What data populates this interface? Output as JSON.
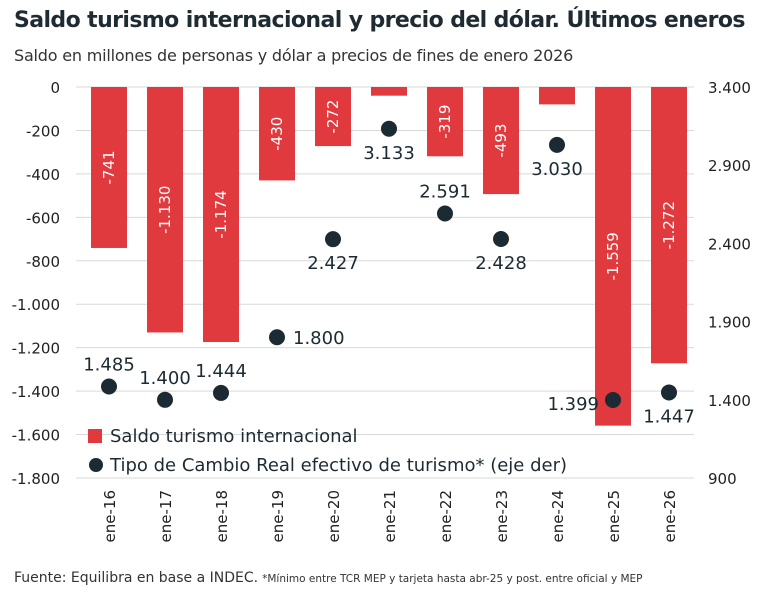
{
  "title": "Saldo turismo internacional y precio del dólar. Últimos eneros",
  "subtitle": "Saldo en millones de personas y dólar a precios de fines de enero 2026",
  "footer": {
    "source": "Fuente: Equilibra en base a INDEC.",
    "note": "*Mínimo entre TCR MEP y tarjeta hasta abr-25 y post. entre oficial y MEP"
  },
  "chart_data": {
    "type": "bar",
    "title": "Saldo turismo internacional y precio del dólar. Últimos eneros",
    "categories": [
      "ene-16",
      "ene-17",
      "ene-18",
      "ene-19",
      "ene-20",
      "ene-21",
      "ene-22",
      "ene-23",
      "ene-24",
      "ene-25",
      "ene-26"
    ],
    "series": [
      {
        "name": "Saldo turismo internacional",
        "axis": "left",
        "type": "bar",
        "color": "#e03a3e",
        "values": [
          -741,
          -1130,
          -1174,
          -430,
          -272,
          -40,
          -319,
          -493,
          -80,
          -1559,
          -1272
        ],
        "labels": [
          "-741",
          "-1.130",
          "-1.174",
          "-430",
          "-272",
          "",
          "-319",
          "-493",
          "",
          "-1.559",
          "-1.272"
        ]
      },
      {
        "name": "Tipo de Cambio Real efectivo de turismo* (eje der)",
        "axis": "right",
        "type": "scatter",
        "color": "#1c2b33",
        "values": [
          1485,
          1400,
          1444,
          1800,
          2427,
          3133,
          2591,
          2428,
          3030,
          1399,
          1447
        ],
        "labels": [
          "1.485",
          "1.400",
          "1.444",
          "1.800",
          "2.427",
          "3.133",
          "2.591",
          "2.428",
          "3.030",
          "1.399",
          "1.447"
        ]
      }
    ],
    "y_left": {
      "range": [
        -1800,
        0
      ],
      "ticks": [
        0,
        -200,
        -400,
        -600,
        -800,
        -1000,
        -1200,
        -1400,
        -1600,
        -1800
      ],
      "tick_labels": [
        "0",
        "-200",
        "-400",
        "-600",
        "-800",
        "-1.000",
        "-1.200",
        "-1.400",
        "-1.600",
        "-1.800"
      ]
    },
    "y_right": {
      "range": [
        900,
        3400
      ],
      "ticks": [
        3400,
        2900,
        2400,
        1900,
        1400,
        900
      ],
      "tick_labels": [
        "3.400",
        "2.900",
        "2.400",
        "1.900",
        "1.400",
        "900"
      ]
    },
    "grid": true,
    "legend_position": "bottom-left"
  }
}
